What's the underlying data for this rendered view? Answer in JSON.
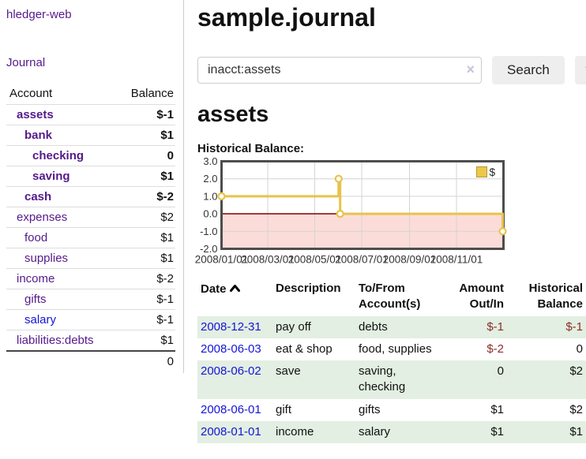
{
  "sidebar": {
    "app_link": "hledger-web",
    "journal_link": "Journal",
    "headers": [
      "Account",
      "Balance"
    ],
    "accounts": [
      {
        "name": "assets",
        "indent": 1,
        "bold": true,
        "link_color": "purple",
        "balance": "$-1",
        "balance_class": "neg"
      },
      {
        "name": "bank",
        "indent": 2,
        "bold": true,
        "link_color": "purple",
        "balance": "$1",
        "balance_class": ""
      },
      {
        "name": "checking",
        "indent": 3,
        "bold": true,
        "link_color": "purple",
        "balance": "0",
        "balance_class": ""
      },
      {
        "name": "saving",
        "indent": 3,
        "bold": true,
        "link_color": "purple",
        "balance": "$1",
        "balance_class": ""
      },
      {
        "name": "cash",
        "indent": 2,
        "bold": true,
        "link_color": "purple",
        "balance": "$-2",
        "balance_class": "neg"
      },
      {
        "name": "expenses",
        "indent": 1,
        "bold": false,
        "link_color": "purple",
        "balance": "$2",
        "balance_class": ""
      },
      {
        "name": "food",
        "indent": 2,
        "bold": false,
        "link_color": "purple",
        "balance": "$1",
        "balance_class": ""
      },
      {
        "name": "supplies",
        "indent": 2,
        "bold": false,
        "link_color": "purple",
        "balance": "$1",
        "balance_class": ""
      },
      {
        "name": "income",
        "indent": 1,
        "bold": false,
        "link_color": "purple",
        "balance": "$-2",
        "balance_class": "neg-light"
      },
      {
        "name": "gifts",
        "indent": 2,
        "bold": false,
        "link_color": "purple",
        "balance": "$-1",
        "balance_class": "neg-light"
      },
      {
        "name": "salary",
        "indent": 2,
        "bold": false,
        "link_color": "blue",
        "balance": "$-1",
        "balance_class": "neg-light"
      },
      {
        "name": "liabilities:debts",
        "indent": 1,
        "bold": false,
        "link_color": "purple",
        "balance": "$1",
        "balance_class": ""
      }
    ],
    "total": "0"
  },
  "header": {
    "title": "sample.journal"
  },
  "search": {
    "value": "inacct:assets",
    "clear_icon": "×",
    "button_label": "Search",
    "help_label": "?"
  },
  "account_page": {
    "heading": "assets",
    "chart_label": "Historical Balance:"
  },
  "chart_data": {
    "type": "line",
    "title": "Historical Balance:",
    "legend": [
      {
        "label": "$",
        "color": "#ecc849"
      }
    ],
    "ylim": [
      -2,
      3
    ],
    "y_ticks": [
      3.0,
      2.0,
      1.0,
      0.0,
      -1.0,
      -2.0
    ],
    "y_tick_labels": [
      "3.0",
      "2.0",
      "1.0",
      "0.0",
      "-1.0",
      "-2.0"
    ],
    "x_domain_days": [
      0,
      366
    ],
    "x_ticks": [
      {
        "label": "2008/01/01",
        "day": 0
      },
      {
        "label": "2008/03/01",
        "day": 60
      },
      {
        "label": "2008/05/01",
        "day": 121
      },
      {
        "label": "2008/07/01",
        "day": 182
      },
      {
        "label": "2008/09/01",
        "day": 244
      },
      {
        "label": "2008/11/01",
        "day": 305
      }
    ],
    "points": [
      {
        "date": "2008-01-01",
        "day": 0,
        "value": 1
      },
      {
        "date": "2008-06-01",
        "day": 152,
        "value": 2
      },
      {
        "date": "2008-06-03",
        "day": 154,
        "value": 0
      },
      {
        "date": "2008-12-31",
        "day": 365,
        "value": -1
      }
    ],
    "step": true,
    "grid": true,
    "legend_position": "top-right",
    "line_color": "#e8c34a",
    "marker_fill": "#ffffff",
    "negative_region_color": "#fcdcd9",
    "zero_line_color": "#8b1111",
    "grid_color": "#d4d4d4",
    "border_color": "#4d4d4d"
  },
  "register": {
    "headers": {
      "date": "Date",
      "description": "Description",
      "accounts": "To/From Account(s)",
      "amount": "Amount Out/In",
      "balance": "Historical Balance"
    },
    "rows": [
      {
        "date": "2008-12-31",
        "description": "pay off",
        "accounts": "debts",
        "amount": "$-1",
        "amount_class": "neg",
        "balance": "$-1",
        "balance_class": "neg"
      },
      {
        "date": "2008-06-03",
        "description": "eat & shop",
        "accounts": "food, supplies",
        "amount": "$-2",
        "amount_class": "neg",
        "balance": "0",
        "balance_class": ""
      },
      {
        "date": "2008-06-02",
        "description": "save",
        "accounts": "saving, checking",
        "amount": "0",
        "amount_class": "",
        "balance": "$2",
        "balance_class": ""
      },
      {
        "date": "2008-06-01",
        "description": "gift",
        "accounts": "gifts",
        "amount": "$1",
        "amount_class": "",
        "balance": "$2",
        "balance_class": ""
      },
      {
        "date": "2008-01-01",
        "description": "income",
        "accounts": "salary",
        "amount": "$1",
        "amount_class": "",
        "balance": "$1",
        "balance_class": ""
      }
    ]
  },
  "colors": {
    "link_purple": "#551a8b",
    "link_blue": "#1515d6",
    "negative_strong": "#8c2e26",
    "negative_light": "#c0716c",
    "row_stripe_green": "#e2efe2",
    "sidebar_divider": "#cccccc"
  }
}
